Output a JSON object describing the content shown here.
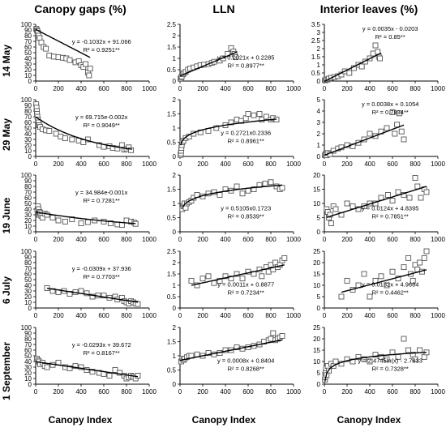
{
  "figure": {
    "column_titles": [
      "Canopy gaps (%)",
      "LLN",
      "Interior leaves (%)"
    ],
    "row_labels": [
      "14 May",
      "29 May",
      "19 June",
      "6 July",
      "1 September"
    ],
    "x_axis_label": "Canopy Index"
  },
  "chart_data": [
    {
      "type": "scatter",
      "row": "14 May",
      "column": "Canopy gaps (%)",
      "xlim": [
        0,
        1000
      ],
      "ylim": [
        0,
        100
      ],
      "xticks": [
        "0",
        "200",
        "400",
        "600",
        "800",
        "1000"
      ],
      "yticks": [
        "0",
        "10",
        "20",
        "30",
        "40",
        "50",
        "60",
        "70",
        "80",
        "90",
        "100"
      ],
      "equation": "y = -0.1032x + 91.066",
      "r2": "R² = 0.9251**",
      "fit": {
        "kind": "linear",
        "a": -0.1032,
        "b": 91.066,
        "xrange": [
          0,
          480
        ]
      },
      "x": [
        5,
        10,
        15,
        20,
        25,
        35,
        50,
        70,
        90,
        120,
        160,
        200,
        240,
        270,
        300,
        350,
        380,
        400,
        420,
        440,
        460,
        470,
        480
      ],
      "y": [
        92,
        90,
        88,
        85,
        80,
        76,
        68,
        60,
        57,
        45,
        43,
        42,
        41,
        40,
        37,
        33,
        35,
        28,
        25,
        30,
        15,
        10,
        22
      ]
    },
    {
      "type": "scatter",
      "row": "14 May",
      "column": "LLN",
      "xlim": [
        0,
        1000
      ],
      "ylim": [
        0,
        2.5
      ],
      "xticks": [
        "0",
        "200",
        "400",
        "600",
        "800",
        "1000"
      ],
      "yticks": [
        "0",
        "0.5",
        "1",
        "1.5",
        "2",
        "2.5"
      ],
      "equation": "y = 0.0021x + 0.2285",
      "r2": "R² = 0.8977**",
      "fit": {
        "kind": "linear",
        "a": 0.0021,
        "b": 0.2285,
        "xrange": [
          0,
          500
        ]
      },
      "x": [
        5,
        10,
        15,
        25,
        35,
        50,
        70,
        90,
        120,
        150,
        180,
        210,
        250,
        280,
        300,
        350,
        380,
        420,
        450,
        470,
        480,
        490
      ],
      "y": [
        0.1,
        0.15,
        0.2,
        0.3,
        0.35,
        0.4,
        0.5,
        0.55,
        0.6,
        0.65,
        0.7,
        0.72,
        0.75,
        0.8,
        0.85,
        0.9,
        1.0,
        1.2,
        1.45,
        1.3,
        1.2,
        1.05
      ]
    },
    {
      "type": "scatter",
      "row": "14 May",
      "column": "Interior leaves (%)",
      "xlim": [
        0,
        1000
      ],
      "ylim": [
        0,
        3.5
      ],
      "xticks": [
        "0",
        "200",
        "400",
        "600",
        "800",
        "1000"
      ],
      "yticks": [
        "0",
        "0.5",
        "1",
        "1.5",
        "2",
        "2.5",
        "3",
        "3.5"
      ],
      "equation": "y = 0.0035x - 0.0203",
      "r2": "R² = 0.85**",
      "fit": {
        "kind": "linear",
        "a": 0.0035,
        "b": -0.0203,
        "xrange": [
          0,
          500
        ]
      },
      "x": [
        5,
        10,
        20,
        30,
        40,
        60,
        90,
        120,
        150,
        180,
        220,
        260,
        300,
        330,
        360,
        400,
        430,
        450,
        470,
        480,
        490
      ],
      "y": [
        0.05,
        0.05,
        0.1,
        0.1,
        0.15,
        0.2,
        0.25,
        0.3,
        0.4,
        0.6,
        0.5,
        0.8,
        1.0,
        0.9,
        1.2,
        1.4,
        1.7,
        2.2,
        1.8,
        1.5,
        1.4
      ]
    },
    {
      "type": "scatter",
      "row": "29 May",
      "column": "Canopy gaps (%)",
      "xlim": [
        0,
        1000
      ],
      "ylim": [
        0,
        100
      ],
      "xticks": [
        "0",
        "200",
        "400",
        "600",
        "800",
        "1000"
      ],
      "yticks": [
        "0",
        "10",
        "20",
        "30",
        "40",
        "50",
        "60",
        "70",
        "80",
        "90",
        "100"
      ],
      "equation": "y = 69.715e-0.002x",
      "r2": "R² = 0.9049**",
      "fit": {
        "kind": "exp",
        "a": 69.715,
        "b": -0.002,
        "xrange": [
          0,
          850
        ]
      },
      "x": [
        5,
        8,
        10,
        12,
        15,
        20,
        25,
        30,
        40,
        60,
        90,
        120,
        180,
        220,
        260,
        320,
        380,
        420,
        460,
        560,
        600,
        650,
        680,
        720,
        760,
        780,
        800,
        820,
        840
      ],
      "y": [
        92,
        86,
        80,
        75,
        70,
        65,
        60,
        55,
        52,
        48,
        46,
        45,
        40,
        35,
        32,
        30,
        28,
        25,
        30,
        20,
        17,
        18,
        15,
        14,
        20,
        12,
        13,
        16,
        11
      ]
    },
    {
      "type": "scatter",
      "row": "29 May",
      "column": "LLN",
      "xlim": [
        0,
        1000
      ],
      "ylim": [
        0,
        2.0
      ],
      "xticks": [
        "0",
        "200",
        "400",
        "600",
        "800",
        "1000"
      ],
      "yticks": [
        "0",
        "0.5",
        "1",
        "1.5",
        "2"
      ],
      "equation": "y = 0.2721x0.2336",
      "r2": "R² = 0.8961**",
      "fit": {
        "kind": "power",
        "a": 0.2721,
        "b": 0.2336,
        "xrange": [
          5,
          850
        ]
      },
      "x": [
        5,
        8,
        10,
        12,
        15,
        20,
        30,
        50,
        80,
        120,
        180,
        250,
        320,
        400,
        450,
        500,
        540,
        580,
        600,
        650,
        700,
        720,
        760,
        800,
        820,
        850
      ],
      "y": [
        0.05,
        0.1,
        0.2,
        0.3,
        0.4,
        0.5,
        0.55,
        0.65,
        0.7,
        0.8,
        0.85,
        0.9,
        1.0,
        1.1,
        1.2,
        1.3,
        1.25,
        1.35,
        1.5,
        1.45,
        1.5,
        1.3,
        1.4,
        1.3,
        1.35,
        1.3
      ]
    },
    {
      "type": "scatter",
      "row": "29 May",
      "column": "Interior leaves (%)",
      "xlim": [
        0,
        1000
      ],
      "ylim": [
        0,
        5
      ],
      "xticks": [
        "0",
        "200",
        "400",
        "600",
        "800",
        "1000"
      ],
      "yticks": [
        "0",
        "1",
        "2",
        "3",
        "4",
        "5"
      ],
      "equation": "y = 0.0038x + 0.1054",
      "r2": "R² = 0.7834**",
      "fit": {
        "kind": "linear",
        "a": 0.0038,
        "b": 0.1054,
        "xrange": [
          0,
          700
        ]
      },
      "x": [
        5,
        10,
        20,
        30,
        50,
        80,
        120,
        150,
        200,
        250,
        300,
        350,
        400,
        450,
        500,
        550,
        600,
        620,
        640,
        660,
        680,
        700
      ],
      "y": [
        0.1,
        0.2,
        0.1,
        0.3,
        0.2,
        0.5,
        0.7,
        0.8,
        1.0,
        0.9,
        1.2,
        1.5,
        2.0,
        1.8,
        2.2,
        2.5,
        3.9,
        2.0,
        2.8,
        3.8,
        2.2,
        1.5
      ]
    },
    {
      "type": "scatter",
      "row": "19 June",
      "column": "Canopy gaps (%)",
      "xlim": [
        0,
        1000
      ],
      "ylim": [
        0,
        100
      ],
      "xticks": [
        "0",
        "200",
        "400",
        "600",
        "800",
        "1000"
      ],
      "yticks": [
        "0",
        "10",
        "20",
        "30",
        "40",
        "50",
        "60",
        "70",
        "80",
        "90",
        "100"
      ],
      "equation": "y = 34.984e-0.001x",
      "r2": "R² = 0.7281**",
      "fit": {
        "kind": "exp",
        "a": 34.984,
        "b": -0.001,
        "xrange": [
          0,
          880
        ]
      },
      "x": [
        15,
        20,
        25,
        30,
        35,
        40,
        50,
        60,
        80,
        100,
        150,
        200,
        260,
        320,
        400,
        460,
        520,
        600,
        660,
        720,
        760,
        800,
        840,
        870,
        880
      ],
      "y": [
        38,
        45,
        40,
        30,
        35,
        33,
        28,
        25,
        32,
        30,
        25,
        20,
        18,
        22,
        15,
        17,
        20,
        18,
        15,
        13,
        12,
        20,
        18,
        16,
        14
      ]
    },
    {
      "type": "scatter",
      "row": "19 June",
      "column": "LLN",
      "xlim": [
        0,
        1000
      ],
      "ylim": [
        0,
        2.0
      ],
      "xticks": [
        "0",
        "200",
        "400",
        "600",
        "800",
        "1000"
      ],
      "yticks": [
        "0",
        "0.5",
        "1",
        "1.5",
        "2"
      ],
      "equation": "y = 0.5105x0.1723",
      "r2": "R² = 0.8539**",
      "fit": {
        "kind": "power",
        "a": 0.5105,
        "b": 0.1723,
        "xrange": [
          20,
          900
        ]
      },
      "x": [
        20,
        30,
        40,
        50,
        60,
        80,
        100,
        120,
        150,
        200,
        250,
        300,
        350,
        400,
        450,
        500,
        550,
        600,
        650,
        700,
        750,
        800,
        850,
        880,
        900
      ],
      "y": [
        0.8,
        0.9,
        1.0,
        0.85,
        1.0,
        1.05,
        1.1,
        1.2,
        1.3,
        1.25,
        1.35,
        1.4,
        1.3,
        1.5,
        1.45,
        1.6,
        1.35,
        1.45,
        1.5,
        1.65,
        1.7,
        1.75,
        1.6,
        1.5,
        1.55
      ]
    },
    {
      "type": "scatter",
      "row": "19 June",
      "column": "Interior leaves (%)",
      "xlim": [
        0,
        1000
      ],
      "ylim": [
        0,
        20
      ],
      "xticks": [
        "0",
        "200",
        "400",
        "600",
        "800",
        "1000"
      ],
      "yticks": [
        "0",
        "5",
        "10",
        "15",
        "20"
      ],
      "equation": "y = 0.0124x + 4.8395",
      "r2": "R² = 0.7851**",
      "fit": {
        "kind": "linear",
        "a": 0.0124,
        "b": 4.8395,
        "xrange": [
          20,
          900
        ]
      },
      "x": [
        20,
        30,
        40,
        50,
        60,
        80,
        100,
        150,
        200,
        250,
        300,
        350,
        400,
        450,
        500,
        560,
        600,
        650,
        700,
        750,
        800,
        820,
        850,
        880,
        900
      ],
      "y": [
        8,
        7,
        5,
        6,
        3,
        9,
        8,
        6,
        10,
        9,
        8,
        9,
        10,
        10,
        12,
        13,
        11,
        14,
        13,
        12,
        19,
        16,
        12,
        15,
        14
      ]
    },
    {
      "type": "scatter",
      "row": "6 July",
      "column": "Canopy gaps (%)",
      "xlim": [
        0,
        1000
      ],
      "ylim": [
        0,
        100
      ],
      "xticks": [
        "0",
        "200",
        "400",
        "600",
        "800",
        "1000"
      ],
      "yticks": [
        "0",
        "10",
        "20",
        "30",
        "40",
        "50",
        "60",
        "70",
        "80",
        "90",
        "100"
      ],
      "equation": "y = -0.0309x + 37.936",
      "r2": "R² = 0.7703**",
      "fit": {
        "kind": "linear",
        "a": -0.0309,
        "b": 37.936,
        "xrange": [
          100,
          900
        ]
      },
      "x": [
        100,
        150,
        200,
        250,
        300,
        350,
        400,
        450,
        500,
        550,
        600,
        650,
        700,
        720,
        760,
        780,
        800,
        820,
        840,
        860,
        880,
        900
      ],
      "y": [
        35,
        30,
        28,
        30,
        25,
        28,
        30,
        26,
        20,
        22,
        22,
        18,
        20,
        15,
        18,
        12,
        10,
        8,
        12,
        10,
        8,
        7
      ]
    },
    {
      "type": "scatter",
      "row": "6 July",
      "column": "LLN",
      "xlim": [
        0,
        1000
      ],
      "ylim": [
        0,
        2.5
      ],
      "xticks": [
        "0",
        "200",
        "400",
        "600",
        "800",
        "1000"
      ],
      "yticks": [
        "0",
        "0.5",
        "1",
        "1.5",
        "2",
        "2.5"
      ],
      "equation": "y = 0.0011x + 0.8877",
      "r2": "R² = 0.7234**",
      "fit": {
        "kind": "linear",
        "a": 0.0011,
        "b": 0.8877,
        "xrange": [
          100,
          920
        ]
      },
      "x": [
        100,
        150,
        200,
        250,
        300,
        350,
        400,
        450,
        500,
        550,
        600,
        650,
        700,
        720,
        760,
        780,
        800,
        820,
        840,
        860,
        880,
        900,
        920
      ],
      "y": [
        1.2,
        1.0,
        1.3,
        1.4,
        1.1,
        1.2,
        1.4,
        1.3,
        1.5,
        1.3,
        1.6,
        1.5,
        1.7,
        1.4,
        1.8,
        1.6,
        1.9,
        1.7,
        2.0,
        1.8,
        1.9,
        2.1,
        2.2
      ]
    },
    {
      "type": "scatter",
      "row": "6 July",
      "column": "Interior leaves (%)",
      "xlim": [
        0,
        1000
      ],
      "ylim": [
        0,
        25
      ],
      "xticks": [
        "0",
        "200",
        "400",
        "600",
        "800",
        "1000"
      ],
      "yticks": [
        "0",
        "5",
        "10",
        "15",
        "20",
        "25"
      ],
      "equation": "y = 0.0132x + 4.9684",
      "r2": "R² = 0.4462**",
      "fit": {
        "kind": "linear",
        "a": 0.0132,
        "b": 4.9684,
        "xrange": [
          150,
          900
        ]
      },
      "x": [
        150,
        200,
        250,
        300,
        350,
        400,
        450,
        500,
        550,
        600,
        650,
        700,
        740,
        760,
        780,
        800,
        820,
        840,
        860,
        880,
        900
      ],
      "y": [
        5,
        12,
        8,
        10,
        15,
        5,
        12,
        14,
        10,
        16,
        13,
        18,
        22,
        15,
        12,
        19,
        17,
        20,
        16,
        22,
        25
      ]
    },
    {
      "type": "scatter",
      "row": "1 September",
      "column": "Canopy gaps (%)",
      "xlim": [
        0,
        1000
      ],
      "ylim": [
        0,
        100
      ],
      "xticks": [
        "0",
        "200",
        "400",
        "600",
        "800",
        "1000"
      ],
      "yticks": [
        "0",
        "10",
        "20",
        "30",
        "40",
        "50",
        "60",
        "70",
        "80",
        "90",
        "100"
      ],
      "equation": "y = -0.0293x + 39.672",
      "r2": "R² = 0.8167**",
      "fit": {
        "kind": "linear",
        "a": -0.0293,
        "b": 39.672,
        "xrange": [
          0,
          900
        ]
      },
      "x": [
        10,
        20,
        30,
        40,
        60,
        80,
        100,
        150,
        200,
        260,
        300,
        350,
        400,
        450,
        500,
        560,
        600,
        650,
        700,
        740,
        780,
        800,
        820,
        840,
        860,
        880,
        900
      ],
      "y": [
        45,
        42,
        40,
        35,
        38,
        32,
        30,
        34,
        38,
        30,
        28,
        32,
        30,
        25,
        22,
        20,
        18,
        15,
        25,
        20,
        15,
        10,
        12,
        15,
        13,
        10,
        15
      ]
    },
    {
      "type": "scatter",
      "row": "1 September",
      "column": "LLN",
      "xlim": [
        0,
        1000
      ],
      "ylim": [
        0,
        2.0
      ],
      "xticks": [
        "0",
        "200",
        "400",
        "600",
        "800",
        "1000"
      ],
      "yticks": [
        "0",
        "0.5",
        "1",
        "1.5",
        "2"
      ],
      "equation": "y = 0.0008x + 0.8404",
      "r2": "R² = 0.8268**",
      "fit": {
        "kind": "linear",
        "a": 0.0008,
        "b": 0.8404,
        "xrange": [
          0,
          900
        ]
      },
      "x": [
        10,
        20,
        30,
        40,
        60,
        80,
        100,
        150,
        200,
        250,
        300,
        350,
        400,
        450,
        500,
        550,
        600,
        650,
        700,
        740,
        780,
        800,
        820,
        840,
        860,
        880,
        900
      ],
      "y": [
        0.8,
        0.9,
        0.85,
        0.9,
        0.95,
        1.0,
        1.0,
        1.05,
        1.0,
        1.1,
        1.05,
        1.1,
        1.2,
        1.2,
        1.3,
        1.25,
        1.3,
        1.35,
        1.4,
        1.5,
        1.55,
        1.6,
        1.8,
        1.55,
        1.6,
        1.65,
        1.7
      ]
    },
    {
      "type": "scatter",
      "row": "1 September",
      "column": "Interior leaves (%)",
      "xlim": [
        0,
        1000
      ],
      "ylim": [
        0,
        25
      ],
      "xticks": [
        "0",
        "200",
        "400",
        "600",
        "800",
        "1000"
      ],
      "yticks": [
        "0",
        "5",
        "10",
        "15",
        "20",
        "25"
      ],
      "equation": "y = 2.4745ln(x) - 2.7833",
      "r2": "R² = 0.7328**",
      "fit": {
        "kind": "log",
        "a": 2.4745,
        "b": -2.7833,
        "xrange": [
          5,
          900
        ]
      },
      "x": [
        5,
        8,
        10,
        15,
        20,
        30,
        40,
        60,
        80,
        100,
        150,
        200,
        250,
        300,
        350,
        400,
        450,
        500,
        550,
        600,
        650,
        700,
        740,
        780,
        800,
        840,
        880,
        900
      ],
      "y": [
        2,
        3,
        5,
        7,
        4,
        8,
        6,
        9,
        8,
        10,
        9,
        11,
        10,
        12,
        11,
        10,
        13,
        12,
        11,
        14,
        12,
        20,
        15,
        13,
        11,
        15,
        12,
        14
      ]
    }
  ]
}
